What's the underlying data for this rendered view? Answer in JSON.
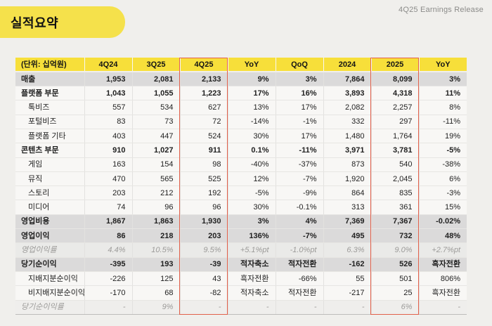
{
  "header": {
    "release_label": "4Q25 Earnings Release",
    "page_title": "실적요약"
  },
  "colors": {
    "accent_yellow": "#f7df3a",
    "pill_yellow": "#f5e14b",
    "highlight_red": "#e2604b",
    "total_row_gray": "#dbdada",
    "page_background": "#f0efec"
  },
  "highlights": {
    "quarter_column": "4Q25",
    "year_column": "2025"
  },
  "table": {
    "columns": [
      "(단위: 십억원)",
      "4Q24",
      "3Q25",
      "4Q25",
      "YoY",
      "QoQ",
      "2024",
      "2025",
      "YoY"
    ],
    "rows": [
      {
        "label": "매출",
        "style": "total",
        "values": [
          "1,953",
          "2,081",
          "2,133",
          "9%",
          "3%",
          "7,864",
          "8,099",
          "3%"
        ]
      },
      {
        "label": "플랫폼 부문",
        "style": "category",
        "values": [
          "1,043",
          "1,055",
          "1,223",
          "17%",
          "16%",
          "3,893",
          "4,318",
          "11%"
        ]
      },
      {
        "label": "톡비즈",
        "style": "sub",
        "values": [
          "557",
          "534",
          "627",
          "13%",
          "17%",
          "2,082",
          "2,257",
          "8%"
        ]
      },
      {
        "label": "포털비즈",
        "style": "sub",
        "values": [
          "83",
          "73",
          "72",
          "-14%",
          "-1%",
          "332",
          "297",
          "-11%"
        ]
      },
      {
        "label": "플랫폼 기타",
        "style": "sub",
        "values": [
          "403",
          "447",
          "524",
          "30%",
          "17%",
          "1,480",
          "1,764",
          "19%"
        ]
      },
      {
        "label": "콘텐츠 부문",
        "style": "category",
        "values": [
          "910",
          "1,027",
          "911",
          "0.1%",
          "-11%",
          "3,971",
          "3,781",
          "-5%"
        ]
      },
      {
        "label": "게임",
        "style": "sub",
        "values": [
          "163",
          "154",
          "98",
          "-40%",
          "-37%",
          "873",
          "540",
          "-38%"
        ]
      },
      {
        "label": "뮤직",
        "style": "sub",
        "values": [
          "470",
          "565",
          "525",
          "12%",
          "-7%",
          "1,920",
          "2,045",
          "6%"
        ]
      },
      {
        "label": "스토리",
        "style": "sub",
        "values": [
          "203",
          "212",
          "192",
          "-5%",
          "-9%",
          "864",
          "835",
          "-3%"
        ]
      },
      {
        "label": "미디어",
        "style": "sub",
        "values": [
          "74",
          "96",
          "96",
          "30%",
          "-0.1%",
          "313",
          "361",
          "15%"
        ]
      },
      {
        "label": "영업비용",
        "style": "total",
        "values": [
          "1,867",
          "1,863",
          "1,930",
          "3%",
          "4%",
          "7,369",
          "7,367",
          "-0.02%"
        ]
      },
      {
        "label": "영업이익",
        "style": "total",
        "values": [
          "86",
          "218",
          "203",
          "136%",
          "-7%",
          "495",
          "732",
          "48%"
        ]
      },
      {
        "label": "영업이익률",
        "style": "ratio",
        "values": [
          "4.4%",
          "10.5%",
          "9.5%",
          "+5.1%pt",
          "-1.0%pt",
          "6.3%",
          "9.0%",
          "+2.7%pt"
        ]
      },
      {
        "label": "당기순이익",
        "style": "total",
        "values": [
          "-395",
          "193",
          "-39",
          "적자축소",
          "적자전환",
          "-162",
          "526",
          "흑자전환"
        ]
      },
      {
        "label": "지배지분순이익",
        "style": "sub",
        "values": [
          "-226",
          "125",
          "43",
          "흑자전환",
          "-66%",
          "55",
          "501",
          "806%"
        ]
      },
      {
        "label": "비지배지분순이익",
        "style": "sub",
        "values": [
          "-170",
          "68",
          "-82",
          "적자축소",
          "적자전환",
          "-217",
          "25",
          "흑자전환"
        ]
      },
      {
        "label": "당기순이익률",
        "style": "ratio2",
        "values": [
          "-",
          "9%",
          "-",
          "-",
          "-",
          "-",
          "6%",
          "-"
        ]
      }
    ]
  }
}
